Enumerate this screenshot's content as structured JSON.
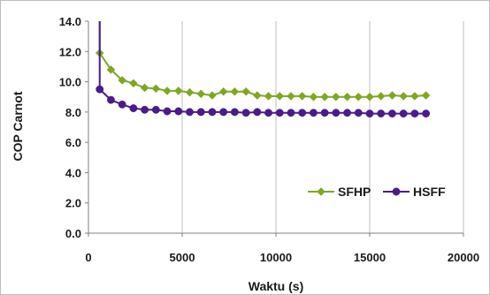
{
  "chart_data": {
    "type": "line",
    "xlabel": "Waktu (s)",
    "ylabel": "COP Carnot",
    "xlim": [
      0,
      20000
    ],
    "ylim": [
      0,
      14
    ],
    "xticks": [
      0,
      5000,
      10000,
      15000,
      20000
    ],
    "xtick_labels": [
      "0",
      "5000",
      "10000",
      "15000",
      "20000"
    ],
    "yticks": [
      0,
      2,
      4,
      6,
      8,
      10,
      12,
      14
    ],
    "ytick_labels": [
      "0.0",
      "2.0",
      "4.0",
      "6.0",
      "8.0",
      "10.0",
      "12.0",
      "14.0"
    ],
    "grid": "vertical",
    "legend_position": "bottom-right",
    "series": [
      {
        "name": "SFHP",
        "color": "#7ea722",
        "marker": "diamond",
        "initial_spike": {
          "x": 600,
          "y_top": 14,
          "y_bottom": 11.9
        },
        "x": [
          600,
          1200,
          1800,
          2400,
          3000,
          3600,
          4200,
          4800,
          5400,
          6000,
          6600,
          7200,
          7800,
          8400,
          9000,
          9600,
          10200,
          10800,
          11400,
          12000,
          12600,
          13200,
          13800,
          14400,
          15000,
          15600,
          16200,
          16800,
          17400,
          18000
        ],
        "values": [
          11.9,
          10.8,
          10.1,
          9.9,
          9.6,
          9.55,
          9.4,
          9.4,
          9.3,
          9.2,
          9.1,
          9.35,
          9.35,
          9.35,
          9.1,
          9.05,
          9.05,
          9.05,
          9.05,
          9.0,
          9.0,
          9.0,
          9.0,
          9.0,
          9.0,
          9.05,
          9.1,
          9.05,
          9.05,
          9.1
        ]
      },
      {
        "name": "HSFF",
        "color": "#4b1a8c",
        "marker": "circle",
        "initial_spike": {
          "x": 600,
          "y_top": 14,
          "y_bottom": 9.5
        },
        "x": [
          600,
          1200,
          1800,
          2400,
          3000,
          3600,
          4200,
          4800,
          5400,
          6000,
          6600,
          7200,
          7800,
          8400,
          9000,
          9600,
          10200,
          10800,
          11400,
          12000,
          12600,
          13200,
          13800,
          14400,
          15000,
          15600,
          16200,
          16800,
          17400,
          18000
        ],
        "values": [
          9.5,
          8.8,
          8.5,
          8.25,
          8.15,
          8.15,
          8.05,
          8.05,
          8.0,
          8.0,
          8.0,
          8.0,
          8.0,
          7.95,
          8.0,
          7.95,
          7.95,
          7.95,
          7.95,
          7.95,
          7.95,
          7.95,
          7.95,
          7.95,
          7.9,
          7.9,
          7.9,
          7.9,
          7.9,
          7.9
        ]
      }
    ]
  }
}
